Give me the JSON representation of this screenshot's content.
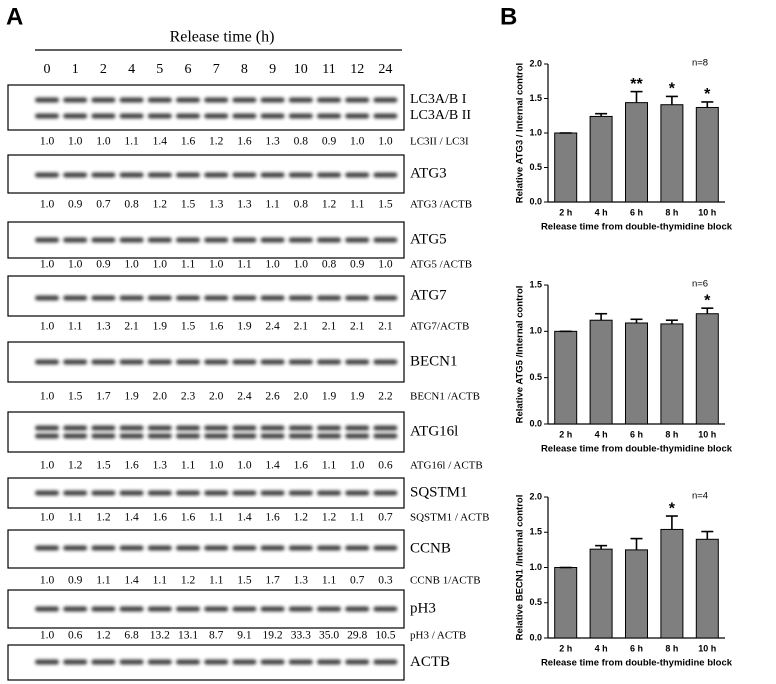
{
  "panel_a": {
    "label": "A",
    "axis_title": "Release time (h)",
    "lanes": [
      "0",
      "1",
      "2",
      "4",
      "5",
      "6",
      "7",
      "8",
      "9",
      "10",
      "11",
      "12",
      "24"
    ],
    "blots": [
      {
        "bands": [
          "LC3A/B I",
          "LC3A/B II"
        ],
        "ratio_label": "LC3II / LC3I",
        "ratios": [
          "1.0",
          "1.0",
          "1.0",
          "1.1",
          "1.4",
          "1.6",
          "1.2",
          "1.6",
          "1.3",
          "0.8",
          "0.9",
          "1.0",
          "1.0"
        ]
      },
      {
        "bands": [
          "ATG3"
        ],
        "ratio_label": "ATG3 /ACTB",
        "ratios": [
          "1.0",
          "0.9",
          "0.7",
          "0.8",
          "1.2",
          "1.5",
          "1.3",
          "1.3",
          "1.1",
          "0.8",
          "1.2",
          "1.1",
          "1.5"
        ]
      },
      {
        "bands": [
          "ATG5"
        ],
        "ratio_label": "ATG5 /ACTB",
        "ratios": [
          "1.0",
          "1.0",
          "0.9",
          "1.0",
          "1.0",
          "1.1",
          "1.0",
          "1.1",
          "1.0",
          "1.0",
          "0.8",
          "0.9",
          "1.0"
        ]
      },
      {
        "bands": [
          "ATG7"
        ],
        "ratio_label": "ATG7/ACTB",
        "ratios": [
          "1.0",
          "1.1",
          "1.3",
          "2.1",
          "1.9",
          "1.5",
          "1.6",
          "1.9",
          "2.4",
          "2.1",
          "2.1",
          "2.1",
          "2.1"
        ]
      },
      {
        "bands": [
          "BECN1"
        ],
        "ratio_label": "BECN1 /ACTB",
        "ratios": [
          "1.0",
          "1.5",
          "1.7",
          "1.9",
          "2.0",
          "2.3",
          "2.0",
          "2.4",
          "2.6",
          "2.0",
          "1.9",
          "1.9",
          "2.2"
        ]
      },
      {
        "bands": [
          "ATG16l"
        ],
        "ratio_label": "ATG16l / ACTB",
        "ratios": [
          "1.0",
          "1.2",
          "1.5",
          "1.6",
          "1.3",
          "1.1",
          "1.0",
          "1.0",
          "1.4",
          "1.6",
          "1.1",
          "1.0",
          "0.6"
        ]
      },
      {
        "bands": [
          "SQSTM1"
        ],
        "ratio_label": "SQSTM1 / ACTB",
        "ratios": [
          "1.0",
          "1.1",
          "1.2",
          "1.4",
          "1.6",
          "1.6",
          "1.1",
          "1.4",
          "1.6",
          "1.2",
          "1.2",
          "1.1",
          "0.7"
        ]
      },
      {
        "bands": [
          "CCNB"
        ],
        "ratio_label": "CCNB 1/ACTB",
        "ratios": [
          "1.0",
          "0.9",
          "1.1",
          "1.4",
          "1.1",
          "1.2",
          "1.1",
          "1.5",
          "1.7",
          "1.3",
          "1.1",
          "0.7",
          "0.3"
        ]
      },
      {
        "bands": [
          "pH3"
        ],
        "ratio_label": "pH3 / ACTB",
        "ratios": [
          "1.0",
          "0.6",
          "1.2",
          "6.8",
          "13.2",
          "13.1",
          "8.7",
          "9.1",
          "19.2",
          "33.3",
          "35.0",
          "29.8",
          "10.5"
        ]
      },
      {
        "bands": [
          "ACTB"
        ]
      }
    ]
  },
  "panel_b": {
    "label": "B"
  },
  "chart_data": [
    {
      "type": "bar",
      "ylabel": "Relative ATG3 / Internal control",
      "xlabel": "Release time from double-thymidine block",
      "categories": [
        "2 h",
        "4 h",
        "6 h",
        "8 h",
        "10 h"
      ],
      "values": [
        1.0,
        1.24,
        1.44,
        1.41,
        1.37
      ],
      "errors": [
        0,
        0.04,
        0.16,
        0.12,
        0.08
      ],
      "significance": [
        null,
        null,
        "**",
        "*",
        "*"
      ],
      "note": "n=8",
      "color": "#7f7f7f",
      "ylim": [
        0,
        2.0
      ],
      "yticks": [
        {
          "value": 0,
          "label": "0.0"
        },
        0.5,
        {
          "value": 1,
          "label": "1.0"
        },
        1.5,
        {
          "value": 2,
          "label": "2.0"
        }
      ]
    },
    {
      "type": "bar",
      "ylabel": "Relative ATG5 /Internal control",
      "xlabel": "Release time from double-thymidine block",
      "categories": [
        "2 h",
        "4 h",
        "6 h",
        "8 h",
        "10 h"
      ],
      "values": [
        1.0,
        1.12,
        1.09,
        1.08,
        1.19
      ],
      "errors": [
        0,
        0.07,
        0.04,
        0.04,
        0.06
      ],
      "significance": [
        null,
        null,
        null,
        null,
        "*"
      ],
      "note": "n=6",
      "color": "#7f7f7f",
      "ylim": [
        0,
        1.5
      ],
      "yticks": [
        {
          "value": 0,
          "label": "0.0"
        },
        0.5,
        {
          "value": 1,
          "label": "1.0"
        },
        1.5
      ]
    },
    {
      "type": "bar",
      "ylabel": "Relative BECN1 /Internal control",
      "xlabel": "Release time from double-thymidine block",
      "categories": [
        "2 h",
        "4 h",
        "6 h",
        "8 h",
        "10 h"
      ],
      "values": [
        1.0,
        1.26,
        1.25,
        1.54,
        1.4
      ],
      "errors": [
        0,
        0.05,
        0.16,
        0.19,
        0.11
      ],
      "significance": [
        null,
        null,
        null,
        "*",
        null
      ],
      "note": "n=4",
      "color": "#7f7f7f",
      "ylim": [
        0,
        2.0
      ],
      "yticks": [
        {
          "value": 0,
          "label": "0.0"
        },
        0.5,
        {
          "value": 1,
          "label": "1.0"
        },
        1.5,
        {
          "value": 2,
          "label": "2.0"
        }
      ]
    }
  ]
}
